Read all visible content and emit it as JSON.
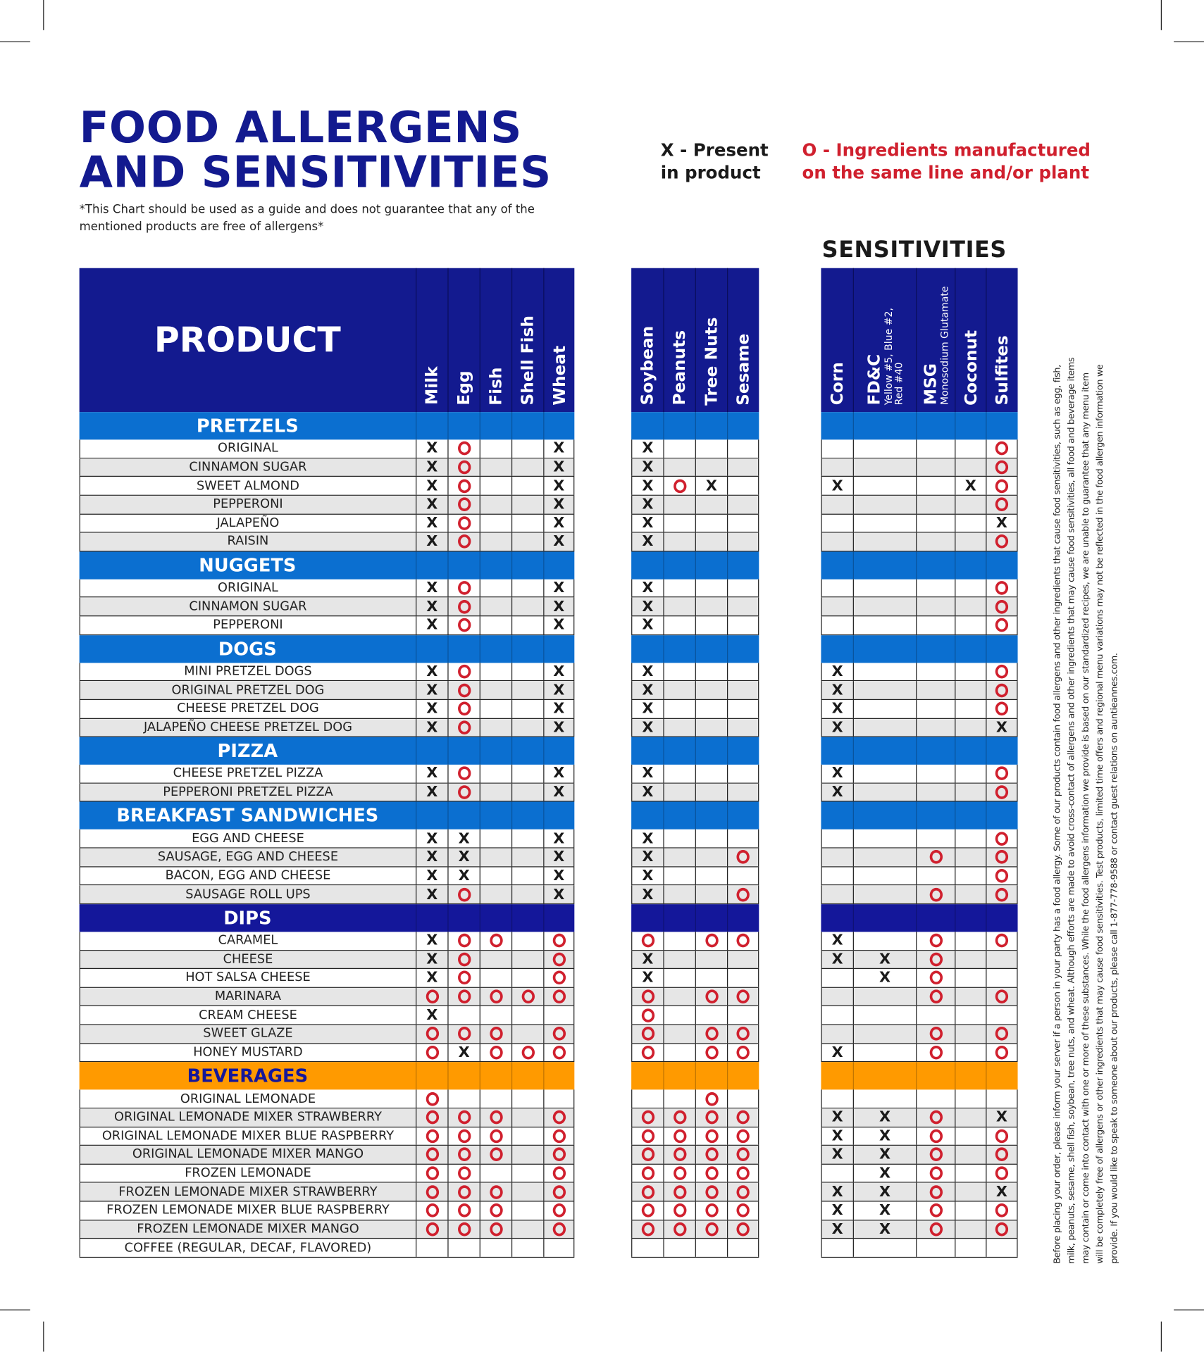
{
  "header": {
    "title_lines": [
      "FOOD ALLERGENS",
      "AND SENSITIVITIES"
    ],
    "disclaimer": "*This Chart should be used as a guide and does not guarantee that any of the mentioned products are free of allergens*",
    "legend_x": [
      "X - Present",
      "in product"
    ],
    "legend_o": [
      "O - Ingredients manufactured",
      "on the same line and/or plant"
    ],
    "sensitivities_title": "SENSITIVITIES"
  },
  "colors": {
    "header_navy": "#131a8f",
    "section_blue": "#0b6fd0",
    "dips_navy": "#14179a",
    "beverages_orange": "#ff9a00",
    "mark_o_red": "#d0202e",
    "stripe_grey": "#e6e6e6"
  },
  "columns": {
    "product": "PRODUCT",
    "allergens_a": [
      {
        "label": "Milk"
      },
      {
        "label": "Egg"
      },
      {
        "label": "Fish"
      },
      {
        "label": "Shell Fish"
      },
      {
        "label": "Wheat"
      }
    ],
    "allergens_b": [
      {
        "label": "Soybean"
      },
      {
        "label": "Peanuts"
      },
      {
        "label": "Tree Nuts"
      },
      {
        "label": "Sesame"
      }
    ],
    "sensitivities": [
      {
        "label": "Corn",
        "sub": ""
      },
      {
        "label": "FD&C",
        "sub": "Yellow #5, Blue #2,",
        "sub2": "Red #40"
      },
      {
        "label": "MSG",
        "sub": "Monosodium Glutamate"
      },
      {
        "label": "Coconut",
        "sub": ""
      },
      {
        "label": "Sulfites",
        "sub": ""
      }
    ]
  },
  "sections": [
    {
      "name": "PRETZELS",
      "style": "blue",
      "rows": [
        {
          "product": "ORIGINAL",
          "marks": [
            "X",
            "O",
            "",
            "",
            "X",
            "X",
            "",
            "",
            "",
            "",
            "",
            "",
            "",
            "O"
          ]
        },
        {
          "product": "CINNAMON SUGAR",
          "marks": [
            "X",
            "O",
            "",
            "",
            "X",
            "X",
            "",
            "",
            "",
            "",
            "",
            "",
            "",
            "O"
          ]
        },
        {
          "product": "SWEET ALMOND",
          "marks": [
            "X",
            "O",
            "",
            "",
            "X",
            "X",
            "O",
            "X",
            "",
            "X",
            "",
            "",
            "X",
            "O"
          ]
        },
        {
          "product": "PEPPERONI",
          "marks": [
            "X",
            "O",
            "",
            "",
            "X",
            "X",
            "",
            "",
            "",
            "",
            "",
            "",
            "",
            "O"
          ]
        },
        {
          "product": "JALAPEÑO",
          "marks": [
            "X",
            "O",
            "",
            "",
            "X",
            "X",
            "",
            "",
            "",
            "",
            "",
            "",
            "",
            "X"
          ]
        },
        {
          "product": "RAISIN",
          "marks": [
            "X",
            "O",
            "",
            "",
            "X",
            "X",
            "",
            "",
            "",
            "",
            "",
            "",
            "",
            "O"
          ]
        }
      ]
    },
    {
      "name": "NUGGETS",
      "style": "blue",
      "rows": [
        {
          "product": "ORIGINAL",
          "marks": [
            "X",
            "O",
            "",
            "",
            "X",
            "X",
            "",
            "",
            "",
            "",
            "",
            "",
            "",
            "O"
          ]
        },
        {
          "product": "CINNAMON SUGAR",
          "marks": [
            "X",
            "O",
            "",
            "",
            "X",
            "X",
            "",
            "",
            "",
            "",
            "",
            "",
            "",
            "O"
          ]
        },
        {
          "product": "PEPPERONI",
          "marks": [
            "X",
            "O",
            "",
            "",
            "X",
            "X",
            "",
            "",
            "",
            "",
            "",
            "",
            "",
            "O"
          ]
        }
      ]
    },
    {
      "name": "DOGS",
      "style": "blue",
      "rows": [
        {
          "product": "MINI PRETZEL DOGS",
          "marks": [
            "X",
            "O",
            "",
            "",
            "X",
            "X",
            "",
            "",
            "",
            "X",
            "",
            "",
            "",
            "O"
          ]
        },
        {
          "product": "ORIGINAL PRETZEL DOG",
          "marks": [
            "X",
            "O",
            "",
            "",
            "X",
            "X",
            "",
            "",
            "",
            "X",
            "",
            "",
            "",
            "O"
          ]
        },
        {
          "product": "CHEESE PRETZEL DOG",
          "marks": [
            "X",
            "O",
            "",
            "",
            "X",
            "X",
            "",
            "",
            "",
            "X",
            "",
            "",
            "",
            "O"
          ]
        },
        {
          "product": "JALAPEÑO CHEESE PRETZEL DOG",
          "marks": [
            "X",
            "O",
            "",
            "",
            "X",
            "X",
            "",
            "",
            "",
            "X",
            "",
            "",
            "",
            "X"
          ]
        }
      ]
    },
    {
      "name": "PIZZA",
      "style": "blue",
      "rows": [
        {
          "product": "CHEESE PRETZEL PIZZA",
          "marks": [
            "X",
            "O",
            "",
            "",
            "X",
            "X",
            "",
            "",
            "",
            "X",
            "",
            "",
            "",
            "O"
          ]
        },
        {
          "product": "PEPPERONI PRETZEL PIZZA",
          "marks": [
            "X",
            "O",
            "",
            "",
            "X",
            "X",
            "",
            "",
            "",
            "X",
            "",
            "",
            "",
            "O"
          ]
        }
      ]
    },
    {
      "name": "BREAKFAST SANDWICHES",
      "style": "blue",
      "rows": [
        {
          "product": "EGG AND CHEESE",
          "marks": [
            "X",
            "X",
            "",
            "",
            "X",
            "X",
            "",
            "",
            "",
            "",
            "",
            "",
            "",
            "O"
          ]
        },
        {
          "product": "SAUSAGE, EGG AND CHEESE",
          "marks": [
            "X",
            "X",
            "",
            "",
            "X",
            "X",
            "",
            "",
            "O",
            "",
            "",
            "O",
            "",
            "O"
          ]
        },
        {
          "product": "BACON, EGG AND CHEESE",
          "marks": [
            "X",
            "X",
            "",
            "",
            "X",
            "X",
            "",
            "",
            "",
            "",
            "",
            "",
            "",
            "O"
          ]
        },
        {
          "product": "SAUSAGE ROLL UPS",
          "marks": [
            "X",
            "O",
            "",
            "",
            "X",
            "X",
            "",
            "",
            "O",
            "",
            "",
            "O",
            "",
            "O"
          ]
        }
      ]
    },
    {
      "name": "DIPS",
      "style": "navy",
      "rows": [
        {
          "product": "CARAMEL",
          "marks": [
            "X",
            "O",
            "O",
            "",
            "O",
            "O",
            "",
            "O",
            "O",
            "X",
            "",
            "O",
            "",
            "O"
          ]
        },
        {
          "product": "CHEESE",
          "marks": [
            "X",
            "O",
            "",
            "",
            "O",
            "X",
            "",
            "",
            "",
            "X",
            "X",
            "O",
            "",
            ""
          ]
        },
        {
          "product": "HOT SALSA CHEESE",
          "marks": [
            "X",
            "O",
            "",
            "",
            "O",
            "X",
            "",
            "",
            "",
            "",
            "X",
            "O",
            "",
            ""
          ]
        },
        {
          "product": "MARINARA",
          "marks": [
            "O",
            "O",
            "O",
            "O",
            "O",
            "O",
            "",
            "O",
            "O",
            "",
            "",
            "O",
            "",
            "O"
          ]
        },
        {
          "product": "CREAM CHEESE",
          "marks": [
            "X",
            "",
            "",
            "",
            "",
            "O",
            "",
            "",
            "",
            "",
            "",
            "",
            "",
            ""
          ]
        },
        {
          "product": "SWEET GLAZE",
          "marks": [
            "O",
            "O",
            "O",
            "",
            "O",
            "O",
            "",
            "O",
            "O",
            "",
            "",
            "O",
            "",
            "O"
          ]
        },
        {
          "product": "HONEY MUSTARD",
          "marks": [
            "O",
            "X",
            "O",
            "O",
            "O",
            "O",
            "",
            "O",
            "O",
            "X",
            "",
            "O",
            "",
            "O"
          ]
        }
      ]
    },
    {
      "name": "BEVERAGES",
      "style": "orange",
      "rows": [
        {
          "product": "ORIGINAL LEMONADE",
          "marks": [
            "O",
            "",
            "",
            "",
            "",
            "",
            "",
            "O",
            "",
            "",
            "",
            "",
            "",
            ""
          ]
        },
        {
          "product": "ORIGINAL LEMONADE MIXER STRAWBERRY",
          "marks": [
            "O",
            "O",
            "O",
            "",
            "O",
            "O",
            "O",
            "O",
            "O",
            "X",
            "X",
            "O",
            "",
            "X"
          ]
        },
        {
          "product": "ORIGINAL LEMONADE MIXER BLUE RASPBERRY",
          "marks": [
            "O",
            "O",
            "O",
            "",
            "O",
            "O",
            "O",
            "O",
            "O",
            "X",
            "X",
            "O",
            "",
            "O"
          ]
        },
        {
          "product": "ORIGINAL LEMONADE MIXER MANGO",
          "marks": [
            "O",
            "O",
            "O",
            "",
            "O",
            "O",
            "O",
            "O",
            "O",
            "X",
            "X",
            "O",
            "",
            "O"
          ]
        },
        {
          "product": "FROZEN LEMONADE",
          "marks": [
            "O",
            "O",
            "",
            "",
            "O",
            "O",
            "O",
            "O",
            "O",
            "",
            "X",
            "O",
            "",
            "O"
          ]
        },
        {
          "product": "FROZEN LEMONADE MIXER STRAWBERRY",
          "marks": [
            "O",
            "O",
            "O",
            "",
            "O",
            "O",
            "O",
            "O",
            "O",
            "X",
            "X",
            "O",
            "",
            "X"
          ]
        },
        {
          "product": "FROZEN LEMONADE MIXER BLUE RASPBERRY",
          "marks": [
            "O",
            "O",
            "O",
            "",
            "O",
            "O",
            "O",
            "O",
            "O",
            "X",
            "X",
            "O",
            "",
            "O"
          ]
        },
        {
          "product": "FROZEN LEMONADE MIXER MANGO",
          "marks": [
            "O",
            "O",
            "O",
            "",
            "O",
            "O",
            "O",
            "O",
            "O",
            "X",
            "X",
            "O",
            "",
            "O"
          ]
        },
        {
          "product": "COFFEE (REGULAR, DECAF, FLAVORED)",
          "marks": [
            "",
            "",
            "",
            "",
            "",
            "",
            "",
            "",
            "",
            "",
            "",
            "",
            "",
            ""
          ]
        }
      ]
    }
  ],
  "notice_lines": [
    "Before placing your order, please inform your server if a person in your party has a food allergy. Some of our products contain food allergens and other ingredients that cause food sensitivities, such as egg, fish,",
    "milk, peanuts, sesame, shell fish, soybean, tree nuts, and wheat. Although efforts are made to avoid cross-contact of allergens and other ingredients that may cause food sensitivities, all food and beverage items",
    "may contain or come into contact with one or more of these substances. While the food allergens information we provide is based on our standardized recipes, we are unable to guarantee that any menu item",
    "will be completely free of allergens or other ingredients that may cause food sensitivities. Test products, limited time offers and regional menu variations may not be reflected in the food allergen information we",
    "provide. If you would like to speak to someone about our products, please call 1-877-778-9588 or contact guest relations on auntieannes.com."
  ]
}
